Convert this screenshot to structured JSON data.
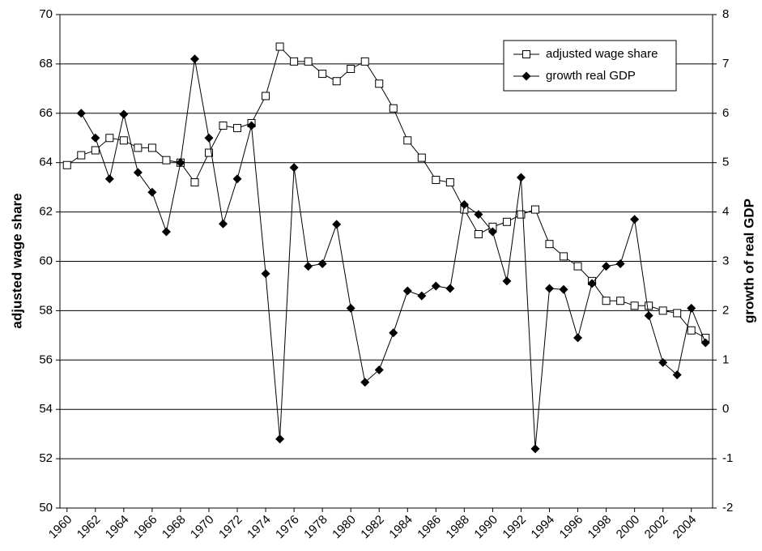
{
  "chart_data": {
    "type": "line",
    "x": [
      1960,
      1961,
      1962,
      1963,
      1964,
      1965,
      1966,
      1967,
      1968,
      1969,
      1970,
      1971,
      1972,
      1973,
      1974,
      1975,
      1976,
      1977,
      1978,
      1979,
      1980,
      1981,
      1982,
      1983,
      1984,
      1985,
      1986,
      1987,
      1988,
      1989,
      1990,
      1991,
      1992,
      1993,
      1994,
      1995,
      1996,
      1997,
      1998,
      1999,
      2000,
      2001,
      2002,
      2003,
      2004,
      2005
    ],
    "xlim": [
      1959.5,
      2005.5
    ],
    "xticks": [
      1960,
      1962,
      1964,
      1966,
      1968,
      1970,
      1972,
      1974,
      1976,
      1978,
      1980,
      1982,
      1984,
      1986,
      1988,
      1990,
      1992,
      1994,
      1996,
      1998,
      2000,
      2002,
      2004
    ],
    "ylabel": "adjusted wage share",
    "y2label": "growth of real GDP",
    "ylim": [
      50,
      70
    ],
    "yticks": [
      50,
      52,
      54,
      56,
      58,
      60,
      62,
      64,
      66,
      68,
      70
    ],
    "y2lim": [
      -2,
      8
    ],
    "y2ticks": [
      -2,
      -1,
      0,
      1,
      2,
      3,
      4,
      5,
      6,
      7,
      8
    ],
    "grid": true,
    "legend": "upper right",
    "series": [
      {
        "name": "adjusted wage share",
        "color": "#000000",
        "marker": "square",
        "values": [
          63.9,
          64.3,
          64.5,
          65.0,
          64.9,
          64.6,
          64.6,
          64.1,
          64.0,
          63.2,
          64.4,
          65.5,
          65.4,
          65.6,
          66.7,
          68.7,
          68.1,
          68.1,
          67.6,
          67.3,
          67.8,
          68.1,
          67.2,
          66.2,
          64.9,
          64.2,
          63.3,
          63.2,
          62.1,
          61.1,
          61.4,
          61.6,
          61.9,
          62.1,
          60.7,
          60.2,
          59.8,
          59.2,
          58.4,
          58.4,
          58.2,
          58.2,
          58.0,
          57.9,
          57.2,
          56.9
        ]
      },
      {
        "name": "growth real GDP",
        "color": "#000000",
        "marker": "diamond",
        "axis": "y2",
        "values": [
          null,
          6.0,
          5.5,
          4.67,
          5.98,
          4.8,
          4.4,
          3.6,
          5.0,
          7.1,
          5.5,
          3.76,
          4.67,
          5.75,
          2.75,
          -0.6,
          4.9,
          2.9,
          2.95,
          3.75,
          2.05,
          0.55,
          0.8,
          1.55,
          2.4,
          2.3,
          2.5,
          2.45,
          4.15,
          3.95,
          3.6,
          2.6,
          4.7,
          -0.8,
          2.45,
          2.43,
          1.45,
          2.55,
          2.9,
          2.95,
          3.85,
          1.9,
          0.95,
          0.7,
          2.05,
          1.35
        ]
      }
    ]
  }
}
